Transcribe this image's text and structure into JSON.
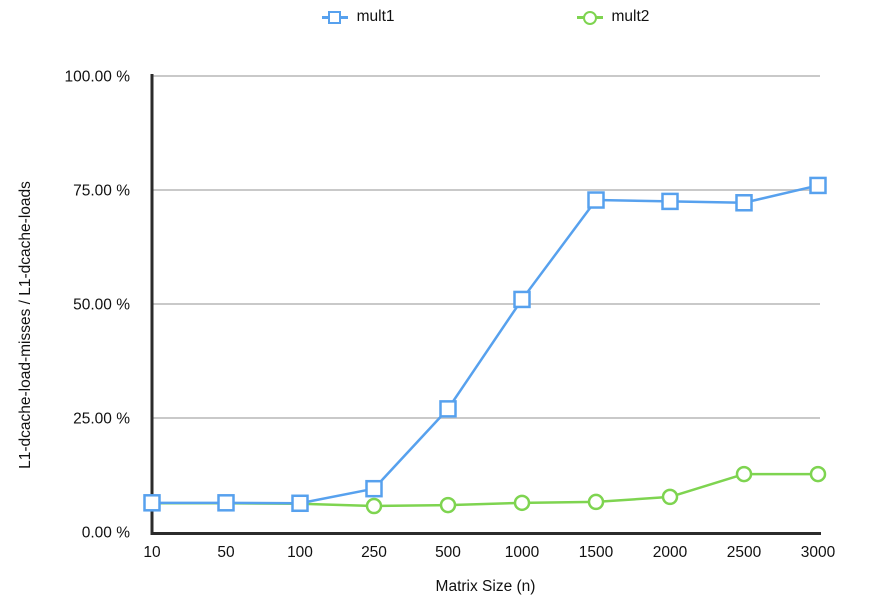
{
  "chart_data": {
    "type": "line",
    "title": "",
    "xlabel": "Matrix Size (n)",
    "ylabel": "L1-dcache-load-misses / L1-dcache-loads",
    "categories": [
      "10",
      "50",
      "100",
      "250",
      "500",
      "1000",
      "1500",
      "2000",
      "2500",
      "3000"
    ],
    "series": [
      {
        "name": "mult1",
        "color": "#57a1ee",
        "marker": "square",
        "values": [
          6.4,
          6.4,
          6.3,
          9.5,
          27.0,
          51.0,
          72.8,
          72.5,
          72.2,
          76.0
        ]
      },
      {
        "name": "mult2",
        "color": "#7ed450",
        "marker": "circle",
        "values": [
          6.3,
          6.3,
          6.2,
          5.7,
          5.9,
          6.4,
          6.6,
          7.7,
          12.7,
          12.7
        ]
      }
    ],
    "ylim": [
      0,
      100
    ],
    "ytick_values": [
      0,
      25,
      50,
      75,
      100
    ],
    "ytick_labels": [
      "0.00 %",
      "25.00 %",
      "50.00 %",
      "75.00 %",
      "100.00 %"
    ],
    "grid": "horizontal",
    "legend_position": "top"
  },
  "colors": {
    "axis": "#2b2b2b",
    "gridline": "#c9c9c9",
    "text": "#111111",
    "marker_fill": "#ffffff"
  }
}
